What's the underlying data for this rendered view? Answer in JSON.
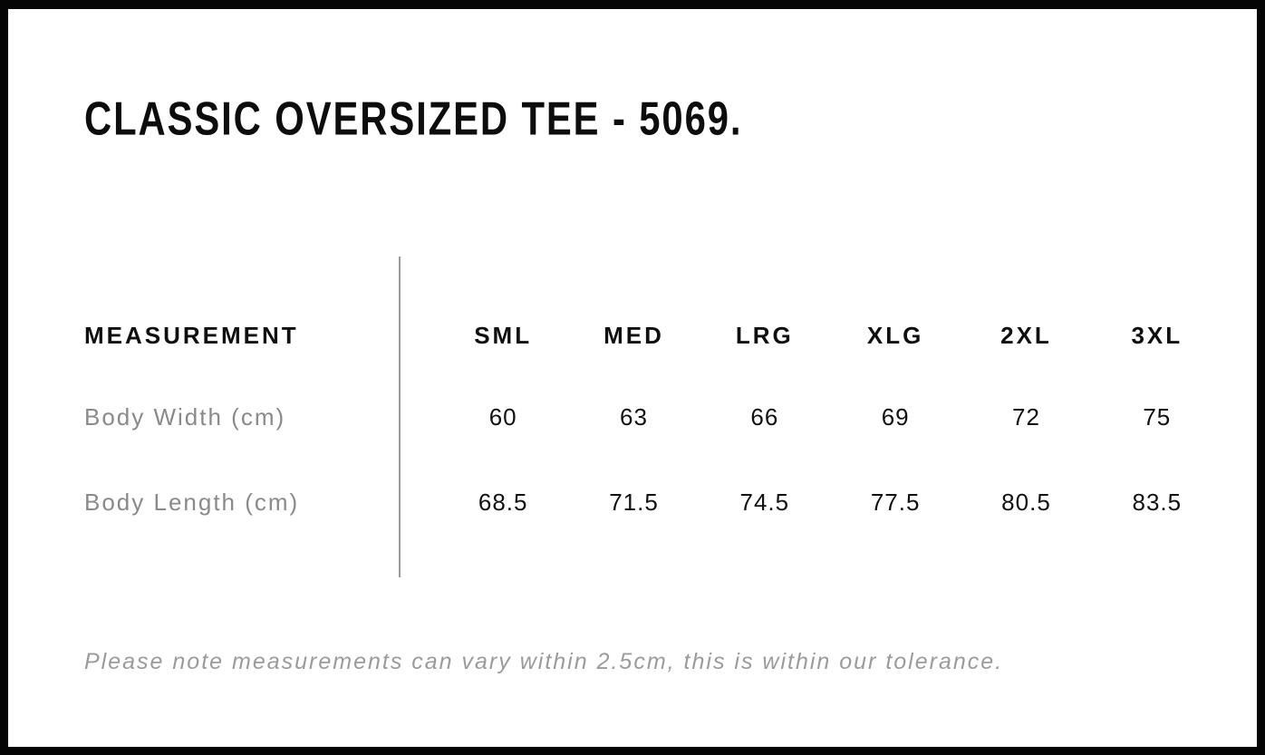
{
  "page": {
    "title": "CLASSIC OVERSIZED TEE - 5069."
  },
  "table": {
    "measurement_header": "MEASUREMENT",
    "sizes": [
      "SML",
      "MED",
      "LRG",
      "XLG",
      "2XL",
      "3XL"
    ],
    "rows": [
      {
        "label": "Body Width (cm)",
        "values": [
          "60",
          "63",
          "66",
          "69",
          "72",
          "75"
        ]
      },
      {
        "label": "Body Length (cm)",
        "values": [
          "68.5",
          "71.5",
          "74.5",
          "77.5",
          "80.5",
          "83.5"
        ]
      }
    ]
  },
  "note": "Please note measurements can vary within 2.5cm, this is within our tolerance.",
  "colors": {
    "background": "#ffffff",
    "frame_border": "#000000",
    "heading_text": "#0d0d0d",
    "value_text": "#111111",
    "label_gray": "#8a8a8a",
    "note_gray": "#9b9b9b",
    "divider_gray": "#9a9a9a"
  }
}
